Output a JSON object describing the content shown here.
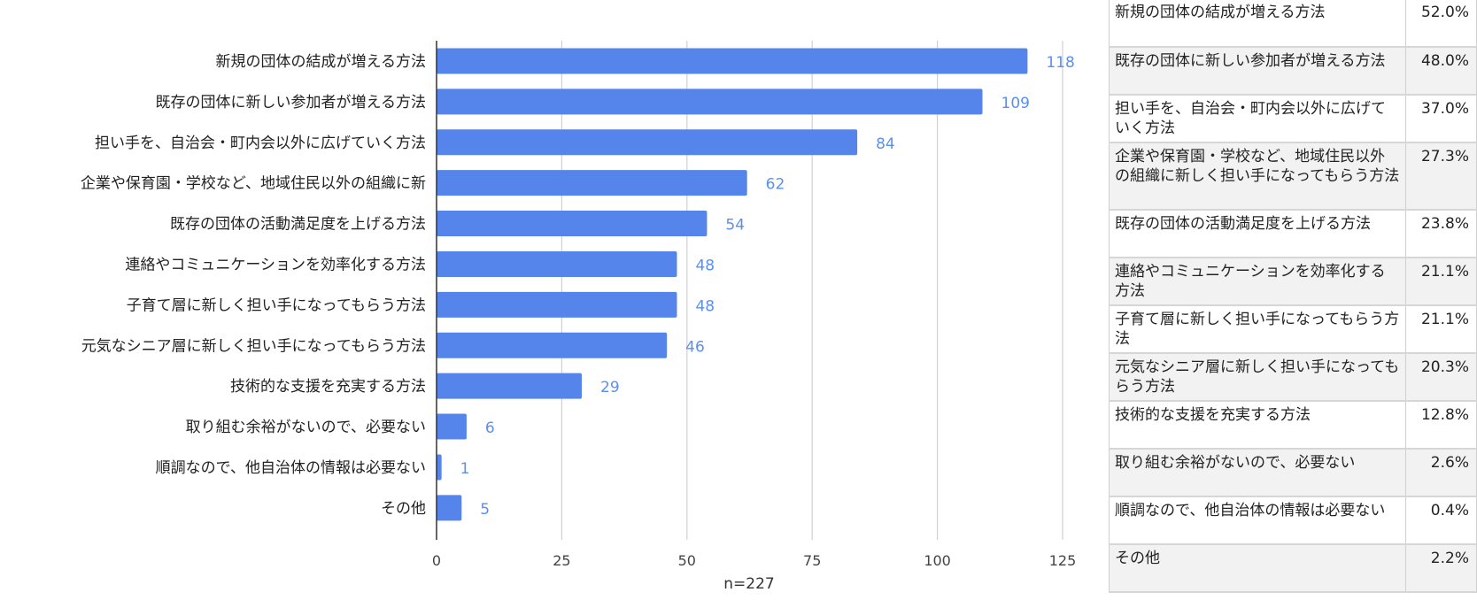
{
  "chart_data": {
    "type": "bar",
    "orientation": "horizontal",
    "categories": [
      "新規の団体の結成が増える方法",
      "既存の団体に新しい参加者が増える方法",
      "担い手を、自治会・町内会以外に広げていく方法",
      "企業や保育園・学校など、地域住民以外の組織に新",
      "既存の団体の活動満足度を上げる方法",
      "連絡やコミュニケーションを効率化する方法",
      "子育て層に新しく担い手になってもらう方法",
      "元気なシニア層に新しく担い手になってもらう方法",
      "技術的な支援を充実する方法",
      "取り組む余裕がないので、必要ない",
      "順調なので、他自治体の情報は必要ない",
      "その他"
    ],
    "values": [
      118,
      109,
      84,
      62,
      54,
      48,
      48,
      46,
      29,
      6,
      1,
      5
    ],
    "xlim": [
      0,
      125
    ],
    "xticks": [
      0,
      25,
      50,
      75,
      100,
      125
    ],
    "grid": true,
    "bar_color": "#5584ea",
    "label_color": "#5b8fee",
    "note": "n=227"
  },
  "table": {
    "rows": [
      {
        "label": "新規の団体の結成が増える方法",
        "pct": "52.0%"
      },
      {
        "label": "既存の団体に新しい参加者が増える方法",
        "pct": "48.0%"
      },
      {
        "label": "担い手を、自治会・町内会以外に広げていく方法",
        "pct": "37.0%"
      },
      {
        "label": "企業や保育園・学校など、地域住民以外の組織に新しく担い手になってもらう方法",
        "pct": "27.3%"
      },
      {
        "label": "既存の団体の活動満足度を上げる方法",
        "pct": "23.8%"
      },
      {
        "label": "連絡やコミュニケーションを効率化する方法",
        "pct": "21.1%"
      },
      {
        "label": "子育て層に新しく担い手になってもらう方法",
        "pct": "21.1%"
      },
      {
        "label": "元気なシニア層に新しく担い手になってもらう方法",
        "pct": "20.3%"
      },
      {
        "label": "技術的な支援を充実する方法",
        "pct": "12.8%"
      },
      {
        "label": "取り組む余裕がないので、必要ない",
        "pct": "2.6%"
      },
      {
        "label": "順調なので、他自治体の情報は必要ない",
        "pct": "0.4%"
      },
      {
        "label": "その他",
        "pct": "2.2%"
      }
    ]
  }
}
